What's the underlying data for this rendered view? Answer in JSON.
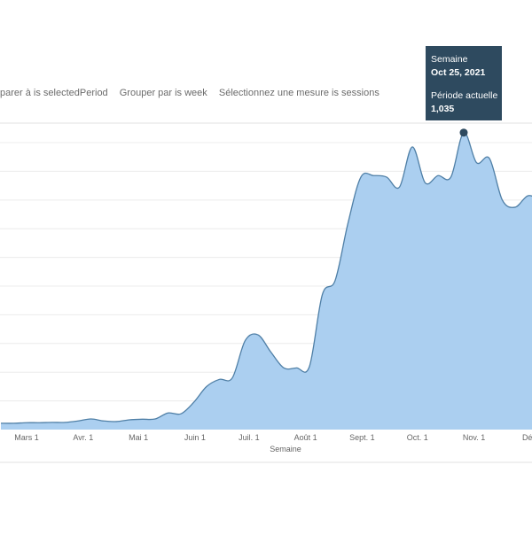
{
  "filters": [
    "parer à is selectedPeriod",
    "Grouper par is week",
    "Sélectionnez une mesure is sessions"
  ],
  "tooltip": {
    "x_label": "Semaine",
    "x_value": "Oct 25, 2021",
    "series_label": "Période actuelle",
    "series_value": "1,035"
  },
  "chart_data": {
    "type": "area",
    "title": "",
    "xlabel": "Semaine",
    "ylabel": "sessions",
    "grid": true,
    "ylim": [
      0,
      1068
    ],
    "y_grid_step": 100,
    "x_tick_labels": [
      "Mars 1",
      "Avr. 1",
      "Mai 1",
      "Juin 1",
      "Juil. 1",
      "Août 1",
      "Sept. 1",
      "Oct. 1",
      "Nov. 1",
      "Déc"
    ],
    "x_tick_week_index": [
      2,
      6.4,
      10.7,
      15.1,
      19.3,
      23.7,
      28.1,
      32.4,
      36.8,
      41.1
    ],
    "x_start": "2021-02-15",
    "x_interval": "week",
    "series": [
      {
        "name": "Période actuelle",
        "color": "#abcff0",
        "line_color": "#4f7fa6",
        "values": [
          22,
          22,
          24,
          24,
          25,
          25,
          30,
          37,
          30,
          28,
          34,
          36,
          37,
          58,
          55,
          95,
          150,
          175,
          180,
          310,
          330,
          270,
          215,
          215,
          220,
          470,
          520,
          720,
          880,
          885,
          880,
          845,
          985,
          860,
          885,
          880,
          1035,
          930,
          945,
          800,
          775,
          815,
          800
        ]
      }
    ],
    "highlight_index": 36,
    "highlight_color": "#2e4a5f"
  }
}
